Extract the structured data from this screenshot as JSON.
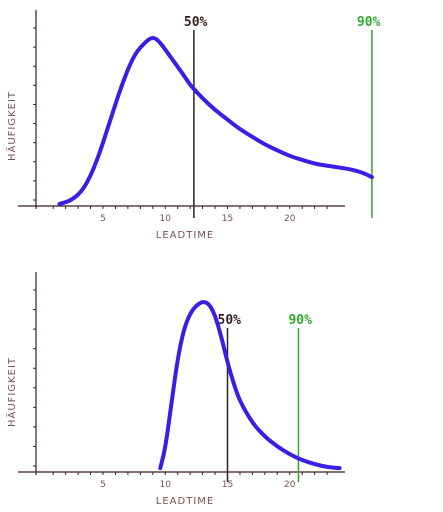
{
  "chart_data": [
    {
      "type": "line",
      "xlabel": "LEADTIME",
      "ylabel": "HÄUFIGKEIT",
      "xlim": [
        -1,
        24
      ],
      "ylim": [
        0,
        10
      ],
      "xticks": [
        {
          "value": 5,
          "label": "5"
        },
        {
          "value": 10,
          "label": "10"
        },
        {
          "value": 15,
          "label": "15"
        },
        {
          "value": 20,
          "label": "20"
        }
      ],
      "series": [
        {
          "color": "#3b1ee6",
          "points": [
            [
              1.5,
              0.1
            ],
            [
              2.5,
              0.3
            ],
            [
              3.5,
              0.9
            ],
            [
              4.5,
              2.3
            ],
            [
              5.5,
              4.3
            ],
            [
              6.5,
              6.3
            ],
            [
              7.5,
              7.9
            ],
            [
              8.5,
              8.6
            ],
            [
              9.0,
              8.8
            ],
            [
              9.5,
              8.6
            ],
            [
              10.5,
              7.7
            ],
            [
              11.5,
              6.8
            ],
            [
              12.0,
              6.3
            ],
            [
              13.0,
              5.6
            ],
            [
              14.0,
              5.0
            ],
            [
              15.0,
              4.5
            ],
            [
              16.0,
              4.0
            ],
            [
              17.0,
              3.6
            ],
            [
              18.0,
              3.2
            ],
            [
              19.0,
              2.9
            ],
            [
              20.0,
              2.6
            ],
            [
              21.0,
              2.4
            ],
            [
              22.0,
              2.2
            ],
            [
              23.0,
              2.1
            ],
            [
              24.0,
              2.0
            ],
            [
              25.0,
              1.9
            ],
            [
              26.0,
              1.7
            ],
            [
              26.6,
              1.5
            ]
          ]
        }
      ],
      "markers": [
        {
          "label": "50%",
          "x": 12.3,
          "color": "#3a1f1f"
        },
        {
          "label": "90%",
          "x": 26.6,
          "color": "#2fa82f"
        }
      ]
    },
    {
      "type": "line",
      "xlabel": "LEADTIME",
      "ylabel": "HÄUFIGKEIT",
      "xlim": [
        -1,
        24
      ],
      "ylim": [
        0,
        10
      ],
      "xticks": [
        {
          "value": 5,
          "label": "5"
        },
        {
          "value": 10,
          "label": "10"
        },
        {
          "value": 15,
          "label": "15"
        },
        {
          "value": 20,
          "label": "20"
        }
      ],
      "series": [
        {
          "color": "#3b1ee6",
          "points": [
            [
              9.6,
              0.2
            ],
            [
              10.0,
              1.2
            ],
            [
              10.5,
              3.5
            ],
            [
              11.0,
              5.8
            ],
            [
              11.5,
              7.3
            ],
            [
              12.0,
              8.1
            ],
            [
              12.5,
              8.5
            ],
            [
              13.0,
              8.7
            ],
            [
              13.5,
              8.6
            ],
            [
              14.0,
              8.0
            ],
            [
              14.5,
              6.9
            ],
            [
              15.0,
              5.6
            ],
            [
              15.5,
              4.5
            ],
            [
              16.0,
              3.6
            ],
            [
              17.0,
              2.5
            ],
            [
              18.0,
              1.8
            ],
            [
              19.0,
              1.3
            ],
            [
              20.0,
              0.9
            ],
            [
              21.0,
              0.6
            ],
            [
              22.0,
              0.4
            ],
            [
              23.0,
              0.25
            ],
            [
              24.0,
              0.2
            ]
          ]
        }
      ],
      "markers": [
        {
          "label": "50%",
          "x": 15.0,
          "color": "#3a1f1f"
        },
        {
          "label": "90%",
          "x": 20.7,
          "color": "#2fa82f"
        }
      ]
    }
  ]
}
